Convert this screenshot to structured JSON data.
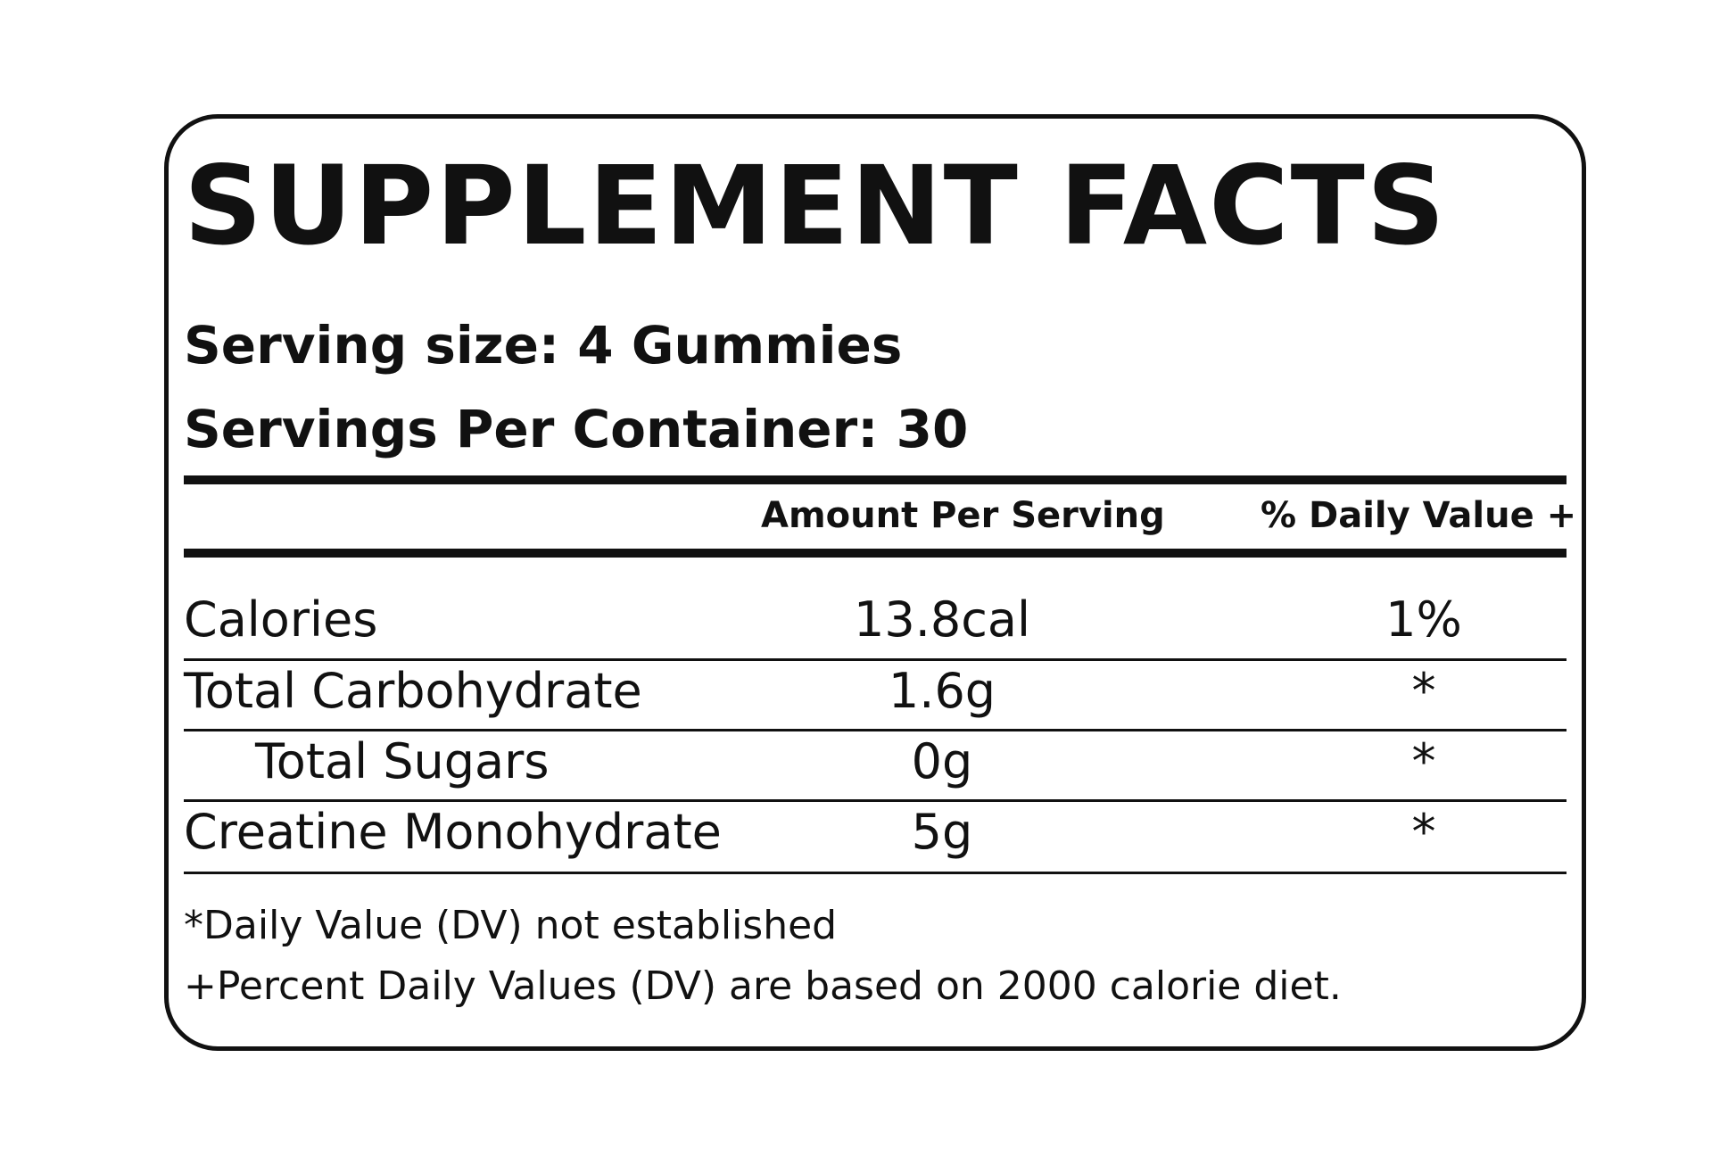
{
  "label": {
    "title": "SUPPLEMENT FACTS",
    "serving_size": "Serving size: 4 Gummies",
    "servings_per_container": "Servings Per Container: 30",
    "columns": {
      "amount": "Amount Per Serving",
      "daily_value": "% Daily Value +"
    },
    "rows": [
      {
        "name": "Calories",
        "amount": "13.8cal",
        "daily_value": "1%"
      },
      {
        "name": "Total Carbohydrate",
        "amount": "1.6g",
        "daily_value": "*"
      },
      {
        "name": "Total Sugars",
        "amount": "0g",
        "daily_value": "*"
      },
      {
        "name": "Creatine Monohydrate",
        "amount": "5g",
        "daily_value": "*"
      }
    ],
    "footnotes": [
      "*Daily Value (DV) not established",
      "+Percent Daily Values (DV) are based on 2000 calorie diet."
    ],
    "colors": {
      "ink": "#111111",
      "background": "#ffffff"
    }
  }
}
